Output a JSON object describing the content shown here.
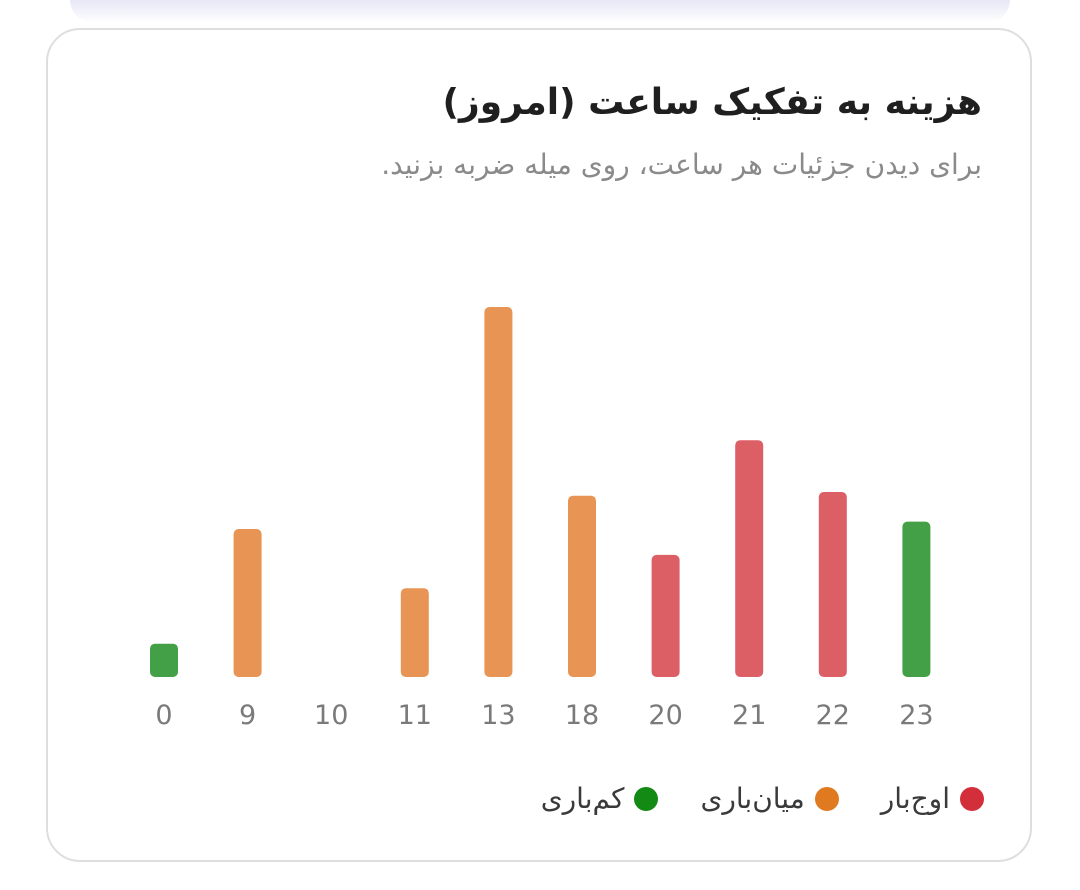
{
  "card": {
    "title": "هزینه به تفکیک ساعت (امروز)",
    "subtitle": "برای دیدن جزئیات هر ساعت، روی میله ضربه بزنید."
  },
  "legend": [
    {
      "label": "اوج‌بار",
      "color": "#d32f3a"
    },
    {
      "label": "میان‌باری",
      "color": "#e07a20"
    },
    {
      "label": "کم‌باری",
      "color": "#138a14"
    }
  ],
  "chart_data": {
    "type": "bar",
    "title": "هزینه به تفکیک ساعت (امروز)",
    "xlabel": "",
    "ylabel": "",
    "categories": [
      "0",
      "9",
      "10",
      "11",
      "13",
      "18",
      "20",
      "21",
      "22",
      "23"
    ],
    "values": [
      9,
      40,
      0,
      24,
      100,
      49,
      33,
      64,
      50,
      42
    ],
    "tiers": [
      "low",
      "mid",
      "mid",
      "mid",
      "mid",
      "mid",
      "peak",
      "peak",
      "peak",
      "low"
    ],
    "tier_colors": {
      "low": "#43a047",
      "mid": "#e89455",
      "peak": "#dc5f66"
    },
    "ylim": [
      0,
      100
    ],
    "grid": false,
    "legend_position": "bottom-right"
  }
}
